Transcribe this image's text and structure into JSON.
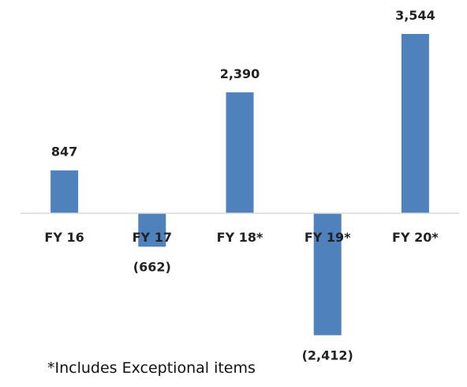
{
  "chart_data": {
    "type": "bar",
    "categories": [
      "FY 16",
      "FY 17",
      "FY 18*",
      "FY 19*",
      "FY 20*"
    ],
    "values": [
      847,
      -662,
      2390,
      -2412,
      3544
    ],
    "data_labels": [
      "847",
      "(662)",
      "2,390",
      "(2,412)",
      "3,544"
    ],
    "title": "",
    "xlabel": "",
    "ylabel": "",
    "ylim": [
      -3000,
      4000
    ],
    "grid": false,
    "legend": "none",
    "bar_color": "#4f81bd",
    "axis_color": "#d9d9d9"
  },
  "footnote": "*Includes Exceptional items"
}
